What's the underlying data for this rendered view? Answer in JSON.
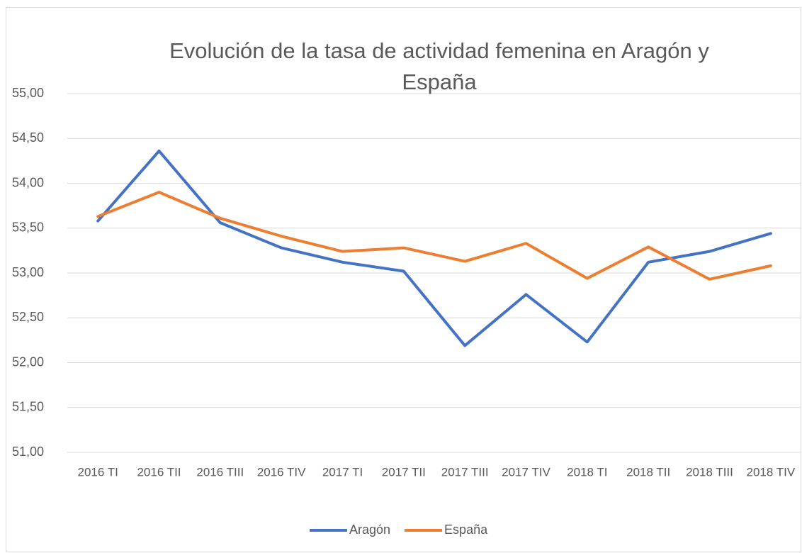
{
  "chart_data": {
    "type": "line",
    "title": "Evolución de la tasa de actividad femenina en Aragón y España",
    "categories": [
      "2016 TI",
      "2016 TII",
      "2016 TIII",
      "2016 TIV",
      "2017 TI",
      "2017 TII",
      "2017 TIII",
      "2017 TIV",
      "2018 TI",
      "2018 TII",
      "2018 TIII",
      "2018 TIV"
    ],
    "series": [
      {
        "name": "Aragón",
        "color": "#4472c4",
        "values": [
          53.58,
          54.36,
          53.56,
          53.28,
          53.12,
          53.02,
          52.19,
          52.76,
          52.23,
          53.12,
          53.24,
          53.44
        ]
      },
      {
        "name": "España",
        "color": "#ed7d31",
        "values": [
          53.63,
          53.9,
          53.61,
          53.41,
          53.24,
          53.28,
          53.13,
          53.33,
          52.94,
          53.29,
          52.93,
          53.08
        ]
      }
    ],
    "ylim": [
      51,
      55
    ],
    "yticks": [
      {
        "value": 51,
        "label": "51,00"
      },
      {
        "value": 51.5,
        "label": "51,50"
      },
      {
        "value": 52,
        "label": "52,00"
      },
      {
        "value": 52.5,
        "label": "52,50"
      },
      {
        "value": 53,
        "label": "53,00"
      },
      {
        "value": 53.5,
        "label": "53,50"
      },
      {
        "value": 54,
        "label": "54,00"
      },
      {
        "value": 54.5,
        "label": "54,50"
      },
      {
        "value": 55,
        "label": "55,00"
      }
    ],
    "grid": true,
    "legend": "bottom"
  }
}
